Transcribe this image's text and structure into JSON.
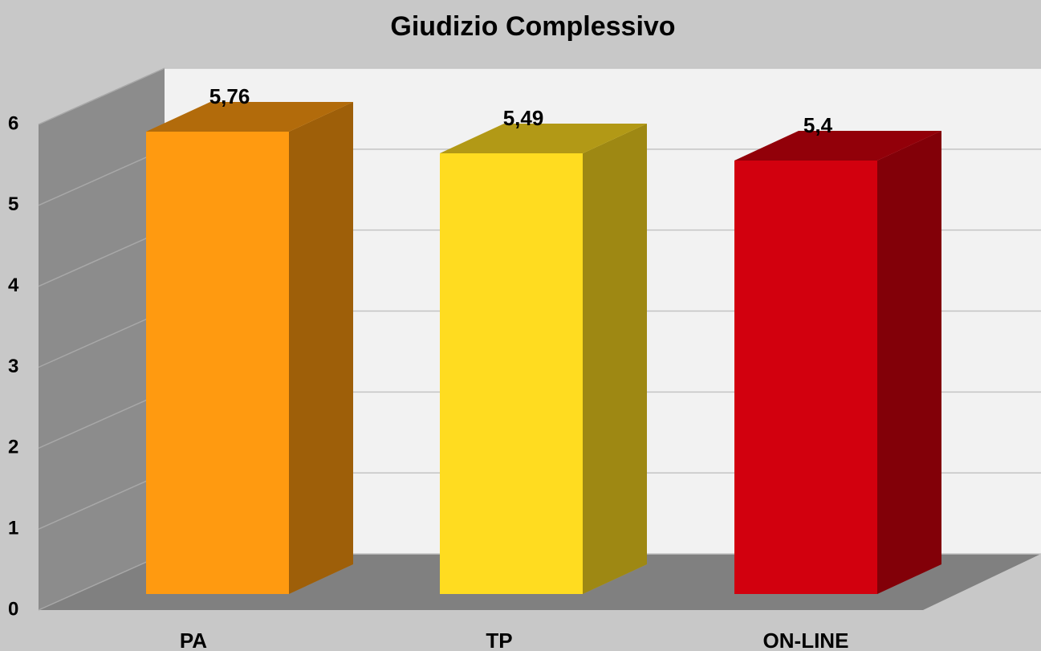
{
  "chart_data": {
    "type": "bar3d",
    "title": "Giudizio Complessivo",
    "categories": [
      "PA",
      "TP",
      "ON-LINE"
    ],
    "values": [
      5.76,
      5.49,
      5.4
    ],
    "value_labels": [
      "5,76",
      "5,49",
      "5,4"
    ],
    "colors": [
      "#ff9a10",
      "#ffdc20",
      "#d2000e"
    ],
    "ylim": [
      0,
      6
    ],
    "yticks": [
      0,
      1,
      2,
      3,
      4,
      5,
      6
    ],
    "grid": true
  }
}
